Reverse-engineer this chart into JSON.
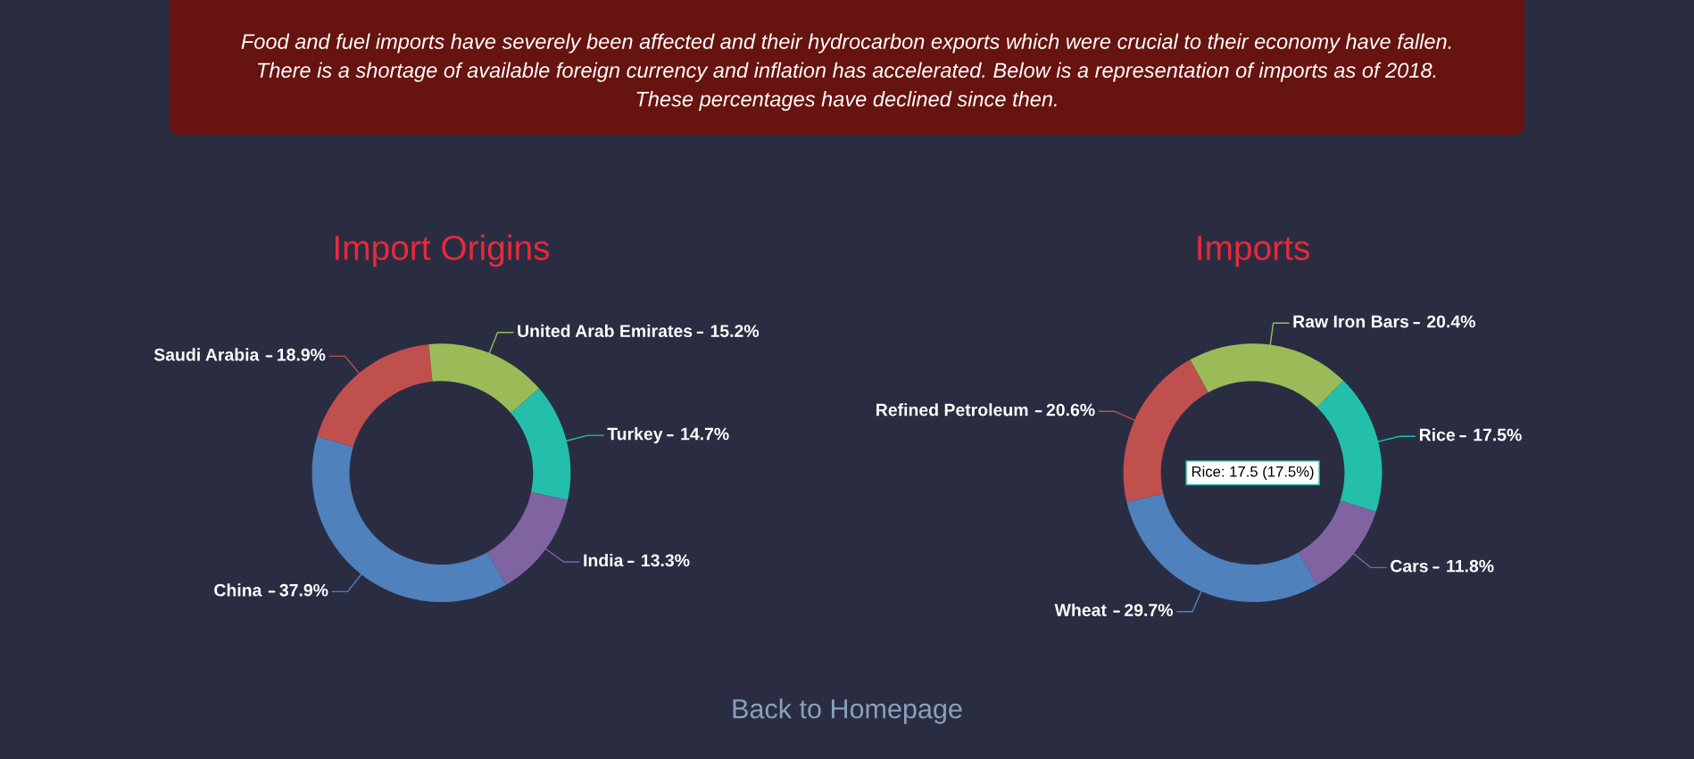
{
  "chart_data": [
    {
      "type": "donut",
      "title": "Import Origins",
      "categories": [
        "China",
        "Saudi Arabia",
        "United Arab Emirates",
        "Turkey",
        "India"
      ],
      "values": [
        37.9,
        18.9,
        15.2,
        14.7,
        13.3
      ],
      "colors": [
        "#4f81bc",
        "#c0504e",
        "#9bbb58",
        "#23bfaa",
        "#8064a1"
      ],
      "value_labels": [
        "37.9%",
        "18.9%",
        "15.2%",
        "14.7%",
        "13.3%"
      ],
      "annotations": [
        "Food and fuel imports have severely been affected and their hydrocarbon exports which were crucial to their economy have fallen. There is a shortage of available foreign currency and inflation has accelerated. Below is a representation of imports as of 2018. These percentages have declined since then.",
        "Back to Homepage"
      ]
    },
    {
      "type": "donut",
      "title": "Imports",
      "categories": [
        "Wheat",
        "Refined Petroleum",
        "Raw Iron Bars",
        "Rice",
        "Cars"
      ],
      "values": [
        29.7,
        20.6,
        20.4,
        17.5,
        11.8
      ],
      "colors": [
        "#4f81bc",
        "#c0504e",
        "#9bbb58",
        "#23bfaa",
        "#8064a1"
      ],
      "value_labels": [
        "29.7%",
        "20.6%",
        "20.4%",
        "17.5%",
        "11.8%"
      ],
      "annotations": [
        "Rice: 17.5 (17.5%)"
      ]
    }
  ]
}
